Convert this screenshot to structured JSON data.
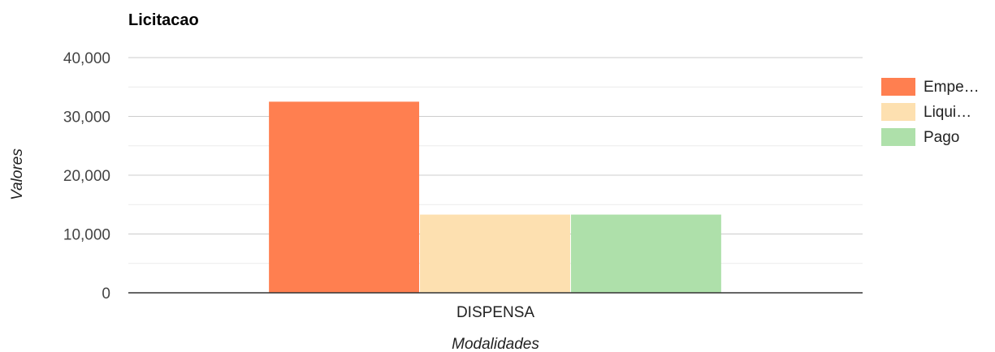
{
  "chart_data": {
    "type": "bar",
    "title": "Licitacao",
    "xlabel": "Modalidades",
    "ylabel": "Valores",
    "categories": [
      "DISPENSA"
    ],
    "series": [
      {
        "name": "Empe…",
        "values": [
          32500
        ],
        "color": "#ff7f50"
      },
      {
        "name": "Liqui…",
        "values": [
          13300
        ],
        "color": "#fde0b0"
      },
      {
        "name": "Pago",
        "values": [
          13300
        ],
        "color": "#aee0aa"
      }
    ],
    "ylim": [
      0,
      40000
    ],
    "yticks": [
      0,
      10000,
      20000,
      30000,
      40000
    ],
    "ytick_labels": [
      "0",
      "10,000",
      "20,000",
      "30,000",
      "40,000"
    ],
    "grid": true,
    "legend": "right"
  }
}
